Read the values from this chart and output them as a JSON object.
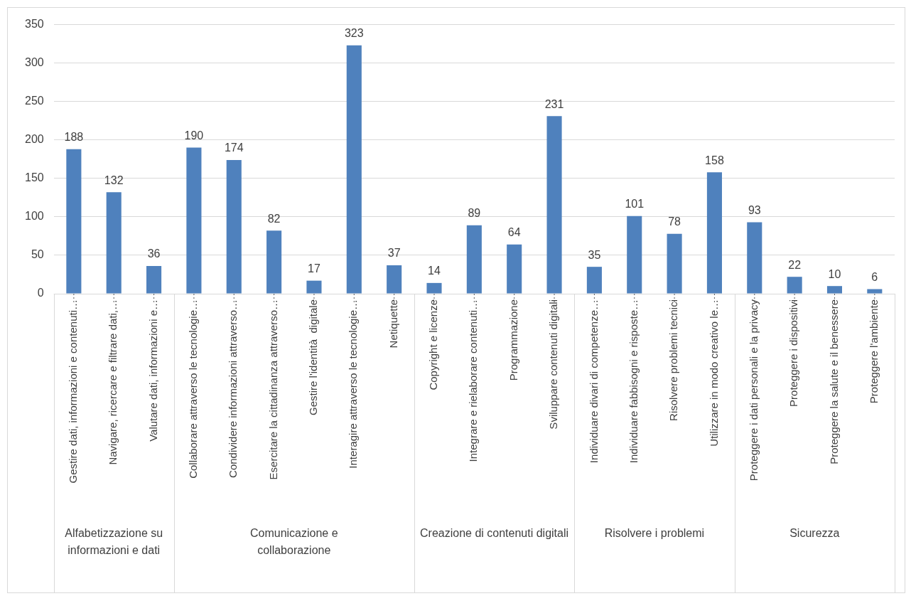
{
  "chart_data": {
    "type": "bar",
    "categories": [
      "Gestire dati, informazioni e contenuti…",
      "Navigare, ricercare e filtrare dati,…",
      "Valutare dati, informazioni e…",
      "Collaborare attraverso le tecnologie…",
      "Condividere informazioni attraverso…",
      "Esercitare la cittadinanza attraverso…",
      "Gestire l'identità  digitale",
      "Interagire attraverso le tecnologie…",
      "Netiquette",
      "Copyright e licenze",
      "Integrare e rielaborare contenuti…",
      "Programmazione",
      "Sviluppare contenuti digitali",
      "Individuare divari di competenze…",
      "Individuare fabbisogni e risposte…",
      "Risolvere problemi tecnici",
      "Utilizzare in modo creativo le…",
      "Proteggere i dati personali e la privacy",
      "Proteggere i dispositivi",
      "Proteggere la salute e il benessere",
      "Proteggere l'ambiente"
    ],
    "values": [
      188,
      132,
      36,
      190,
      174,
      82,
      17,
      323,
      37,
      14,
      89,
      64,
      231,
      35,
      101,
      78,
      158,
      93,
      22,
      10,
      6
    ],
    "color": "#4f81bd",
    "ylim": [
      0,
      350
    ],
    "yticks": [
      0,
      50,
      100,
      150,
      200,
      250,
      300,
      350
    ],
    "grid": "y",
    "legend": false,
    "data_labels": true,
    "annotations": [
      "Alfabetizzazione su informazioni e dati",
      "Comunicazione e collaborazione",
      "Creazione di contenuti digitali",
      "Risolvere i problemi",
      "Sicurezza"
    ]
  }
}
